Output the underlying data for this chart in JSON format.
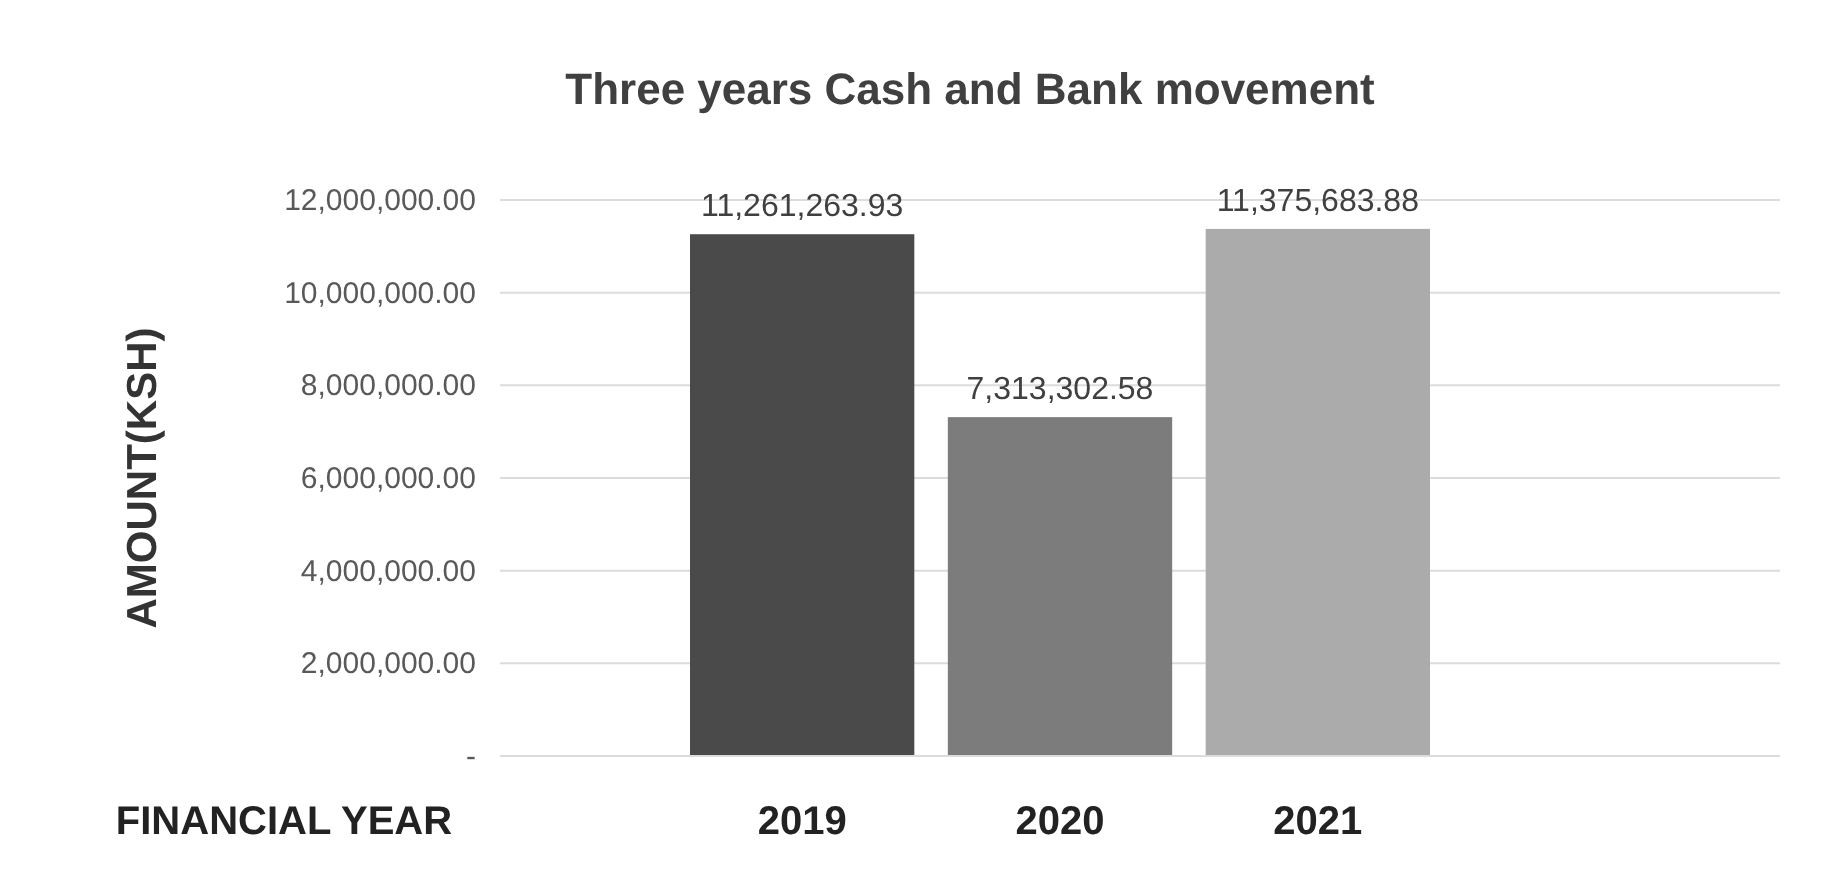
{
  "chart_data": {
    "type": "bar",
    "title": "Three years Cash and Bank movement",
    "xlabel": "FINANCIAL YEAR",
    "ylabel": "AMOUNT(KSH)",
    "categories": [
      "2019",
      "2020",
      "2021"
    ],
    "values": [
      11261263.93,
      7313302.58,
      11375683.88
    ],
    "colors": [
      "#4a4a4a",
      "#7c7c7c",
      "#ababab"
    ],
    "value_labels": [
      "11,261,263.93",
      "7,313,302.58",
      "11,375,683.88"
    ],
    "ylim": [
      0,
      12000000
    ],
    "yticks": [
      {
        "value": 0,
        "label": "-"
      },
      {
        "value": 2000000,
        "label": "2,000,000.00"
      },
      {
        "value": 4000000,
        "label": "4,000,000.00"
      },
      {
        "value": 6000000,
        "label": "6,000,000.00"
      },
      {
        "value": 8000000,
        "label": "8,000,000.00"
      },
      {
        "value": 10000000,
        "label": "10,000,000.00"
      },
      {
        "value": 12000000,
        "label": "12,000,000.00"
      }
    ],
    "grid": "y"
  }
}
